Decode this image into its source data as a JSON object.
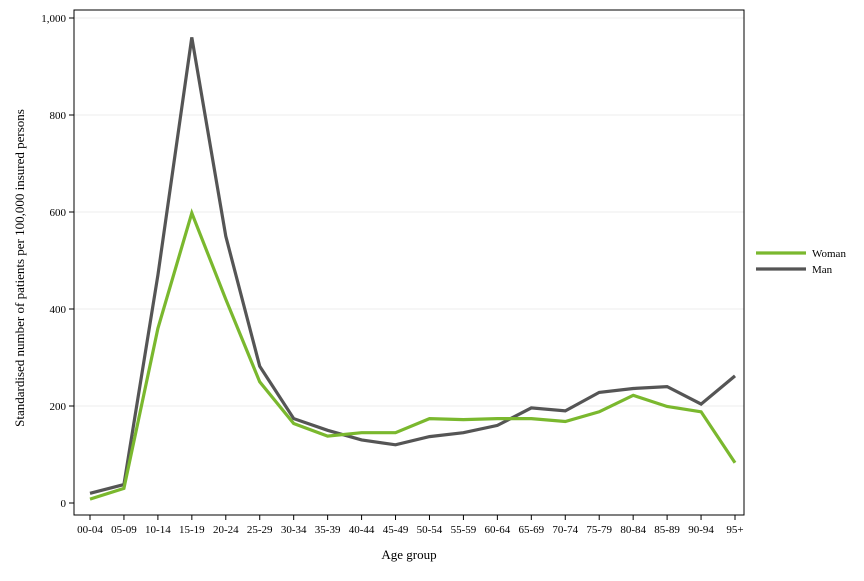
{
  "chart_data": {
    "type": "line",
    "title": "",
    "xlabel": "Age group",
    "ylabel": "Standardised number of patients per 100,000 insured persons",
    "ylim": [
      0,
      1000
    ],
    "yticks": [
      0,
      200,
      400,
      600,
      800,
      1000
    ],
    "ytick_labels": [
      "0",
      "200",
      "400",
      "600",
      "800",
      "1,000"
    ],
    "grid": "horizontal",
    "legend_position": "right",
    "categories": [
      "00-04",
      "05-09",
      "10-14",
      "15-19",
      "20-24",
      "25-29",
      "30-34",
      "35-39",
      "40-44",
      "45-49",
      "50-54",
      "55-59",
      "60-64",
      "65-69",
      "70-74",
      "75-79",
      "80-84",
      "85-89",
      "90-94",
      "95+"
    ],
    "series": [
      {
        "name": "Woman",
        "color": "#7ab82e",
        "values": [
          8,
          30,
          360,
          598,
          420,
          250,
          164,
          138,
          145,
          145,
          174,
          172,
          174,
          174,
          168,
          188,
          222,
          199,
          188,
          83
        ]
      },
      {
        "name": "Man",
        "color": "#555555",
        "values": [
          20,
          38,
          470,
          960,
          550,
          282,
          174,
          150,
          130,
          120,
          137,
          145,
          160,
          196,
          190,
          228,
          236,
          240,
          204,
          262
        ]
      }
    ]
  }
}
